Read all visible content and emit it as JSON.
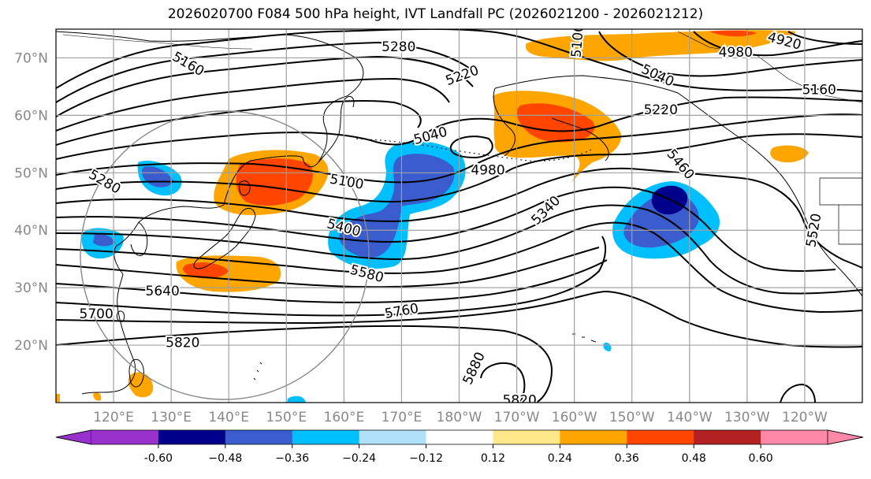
{
  "title": "2026020700 F084 500 hPa height, IVT Landfall PC (2026021200 - 2026021212)",
  "colors": {
    "land_line": "#000000",
    "contour": "#000000",
    "grid": "#a0a0a0",
    "tick_label": "#888888",
    "circle": "#888888"
  },
  "map": {
    "lon_min": 110,
    "lon_max": 250,
    "lat_min": 10,
    "lat_max": 75,
    "lat_ticks": [
      {
        "value": 70,
        "label": "70°N"
      },
      {
        "value": 60,
        "label": "60°N"
      },
      {
        "value": 50,
        "label": "50°N"
      },
      {
        "value": 40,
        "label": "40°N"
      },
      {
        "value": 30,
        "label": "30°N"
      },
      {
        "value": 20,
        "label": "20°N"
      }
    ],
    "lon_ticks": [
      {
        "value": 120,
        "label": "120°E"
      },
      {
        "value": 130,
        "label": "130°E"
      },
      {
        "value": 140,
        "label": "140°E"
      },
      {
        "value": 150,
        "label": "150°E"
      },
      {
        "value": 160,
        "label": "160°E"
      },
      {
        "value": 170,
        "label": "170°E"
      },
      {
        "value": 180,
        "label": "180°W"
      },
      {
        "value": 190,
        "label": "170°W"
      },
      {
        "value": 200,
        "label": "160°W"
      },
      {
        "value": 210,
        "label": "150°W"
      },
      {
        "value": 220,
        "label": "140°W"
      },
      {
        "value": 230,
        "label": "130°W"
      },
      {
        "value": 240,
        "label": "120°W"
      }
    ],
    "contour_labels": [
      {
        "text": "5280",
        "lon": 169.5,
        "lat": 72.0,
        "rot": 0
      },
      {
        "text": "5160",
        "lon": 133.0,
        "lat": 69.0,
        "rot": 30
      },
      {
        "text": "5220",
        "lon": 180.5,
        "lat": 67.0,
        "rot": -20
      },
      {
        "text": "5040",
        "lon": 214.5,
        "lat": 67.0,
        "rot": 25
      },
      {
        "text": "4980",
        "lon": 228.0,
        "lat": 71.0,
        "rot": 0
      },
      {
        "text": "4920",
        "lon": 236.5,
        "lat": 73.0,
        "rot": 15
      },
      {
        "text": "5160",
        "lon": 242.5,
        "lat": 64.5,
        "rot": 0
      },
      {
        "text": "5220",
        "lon": 215.0,
        "lat": 61.0,
        "rot": 0
      },
      {
        "text": "5100",
        "lon": 200.5,
        "lat": 73.0,
        "rot": -85
      },
      {
        "text": "5040",
        "lon": 175.0,
        "lat": 56.5,
        "rot": -15
      },
      {
        "text": "4980",
        "lon": 185.0,
        "lat": 50.5,
        "rot": 0
      },
      {
        "text": "5100",
        "lon": 160.5,
        "lat": 48.5,
        "rot": 10
      },
      {
        "text": "5280",
        "lon": 118.5,
        "lat": 48.5,
        "rot": 30
      },
      {
        "text": "5460",
        "lon": 218.5,
        "lat": 51.5,
        "rot": 50
      },
      {
        "text": "5340",
        "lon": 195.0,
        "lat": 43.5,
        "rot": -45
      },
      {
        "text": "5400",
        "lon": 160.0,
        "lat": 40.5,
        "rot": 15
      },
      {
        "text": "5580",
        "lon": 164.0,
        "lat": 32.5,
        "rot": 15
      },
      {
        "text": "5520",
        "lon": 241.5,
        "lat": 40.0,
        "rot": -80
      },
      {
        "text": "5640",
        "lon": 128.5,
        "lat": 29.5,
        "rot": 0
      },
      {
        "text": "5700",
        "lon": 117.0,
        "lat": 25.5,
        "rot": 0
      },
      {
        "text": "5760",
        "lon": 170.0,
        "lat": 26.0,
        "rot": -10
      },
      {
        "text": "5820",
        "lon": 132.0,
        "lat": 20.5,
        "rot": 0
      },
      {
        "text": "5880",
        "lon": 182.5,
        "lat": 16.0,
        "rot": -65
      },
      {
        "text": "5820",
        "lon": 190.5,
        "lat": 10.5,
        "rot": 0
      }
    ]
  },
  "colorbar": {
    "colors": [
      "#9932cc",
      "#00008b",
      "#3a5ccc",
      "#00bfff",
      "#b0e0fa",
      "#ffffff",
      "#ffe88a",
      "#ffa500",
      "#ff4500",
      "#b22222",
      "#ff88a8"
    ],
    "ticks": [
      "-0.60",
      "−0.48",
      "−0.36",
      "−0.24",
      "−0.12",
      "0.12",
      "0.24",
      "0.36",
      "0.48",
      "0.60"
    ]
  }
}
